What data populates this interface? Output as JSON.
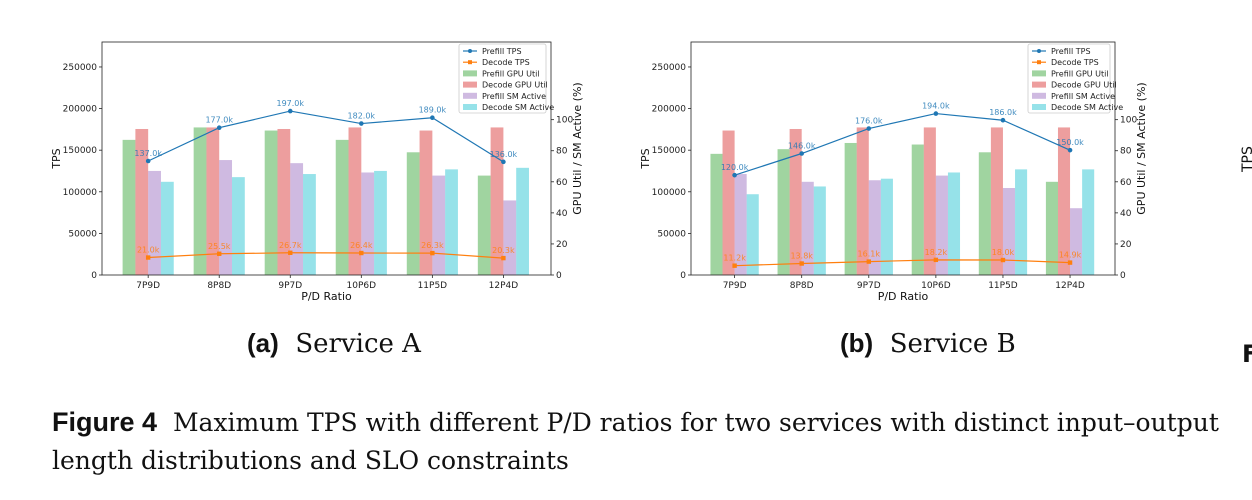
{
  "chart_data": [
    {
      "type": "bar+line",
      "subcaption_label": "(a)",
      "subcaption_text": "Service A",
      "xlabel": "P/D Ratio",
      "ylabel": "TPS",
      "ylabel_right": "GPU Util / SM Active (%)",
      "categories": [
        "7P9D",
        "8P8D",
        "9P7D",
        "10P6D",
        "11P5D",
        "12P4D"
      ],
      "ylim": [
        0,
        280000
      ],
      "yticks": [
        0,
        50000,
        100000,
        150000,
        200000,
        250000
      ],
      "ylim_right": [
        0,
        150
      ],
      "yticks_right": [
        0,
        20,
        40,
        60,
        80,
        100
      ],
      "grid": false,
      "legend_placement": "top-right",
      "lines": [
        {
          "name": "Prefill TPS",
          "color": "#1f77b4",
          "marker": "circle",
          "values": [
            137000,
            177000,
            197000,
            182000,
            189000,
            136000
          ],
          "labels": [
            "137.0k",
            "177.0k",
            "197.0k",
            "182.0k",
            "189.0k",
            "136.0k"
          ]
        },
        {
          "name": "Decode TPS",
          "color": "#ff7f0e",
          "marker": "square",
          "values": [
            21000,
            25500,
            26700,
            26400,
            26300,
            20300
          ],
          "labels": [
            "21.0k",
            "25.5k",
            "26.7k",
            "26.4k",
            "26.3k",
            "20.3k"
          ]
        }
      ],
      "bars": [
        {
          "name": "Prefill GPU Util",
          "color": "#2ca02c",
          "values": [
            87,
            95,
            93,
            87,
            79,
            64
          ]
        },
        {
          "name": "Decode GPU Util",
          "color": "#d62728",
          "values": [
            94,
            95,
            94,
            95,
            93,
            95
          ]
        },
        {
          "name": "Prefill SM Active",
          "color": "#9467bd",
          "values": [
            67,
            74,
            72,
            66,
            64,
            48
          ]
        },
        {
          "name": "Decode SM Active",
          "color": "#17becf",
          "values": [
            60,
            63,
            65,
            67,
            68,
            69
          ]
        }
      ]
    },
    {
      "type": "bar+line",
      "subcaption_label": "(b)",
      "subcaption_text": "Service B",
      "xlabel": "P/D Ratio",
      "ylabel": "TPS",
      "ylabel_right": "GPU Util / SM Active (%)",
      "categories": [
        "7P9D",
        "8P8D",
        "9P7D",
        "10P6D",
        "11P5D",
        "12P4D"
      ],
      "ylim": [
        0,
        280000
      ],
      "yticks": [
        0,
        50000,
        100000,
        150000,
        200000,
        250000
      ],
      "ylim_right": [
        0,
        150
      ],
      "yticks_right": [
        0,
        20,
        40,
        60,
        80,
        100
      ],
      "grid": false,
      "legend_placement": "top-right",
      "lines": [
        {
          "name": "Prefill TPS",
          "color": "#1f77b4",
          "marker": "circle",
          "values": [
            120000,
            146000,
            176000,
            194000,
            186000,
            150000
          ],
          "labels": [
            "120.0k",
            "146.0k",
            "176.0k",
            "194.0k",
            "186.0k",
            "150.0k"
          ]
        },
        {
          "name": "Decode TPS",
          "color": "#ff7f0e",
          "marker": "square",
          "values": [
            11200,
            13800,
            16100,
            18200,
            18000,
            14900
          ],
          "labels": [
            "11.2k",
            "13.8k",
            "16.1k",
            "18.2k",
            "18.0k",
            "14.9k"
          ]
        }
      ],
      "bars": [
        {
          "name": "Prefill GPU Util",
          "color": "#2ca02c",
          "values": [
            78,
            81,
            85,
            84,
            79,
            60
          ]
        },
        {
          "name": "Decode GPU Util",
          "color": "#d62728",
          "values": [
            93,
            94,
            95,
            95,
            95,
            95
          ]
        },
        {
          "name": "Prefill SM Active",
          "color": "#9467bd",
          "values": [
            65,
            60,
            61,
            64,
            56,
            43
          ]
        },
        {
          "name": "Decode SM Active",
          "color": "#17becf",
          "values": [
            52,
            57,
            62,
            66,
            68,
            68
          ]
        }
      ]
    }
  ],
  "caption": {
    "label": "Figure 4",
    "text": "Maximum TPS with different P/D ratios for two services with distinct input–output length distributions and SLO constraints"
  },
  "cropped_panel": {
    "ylabel": "TPS",
    "subcaption_fragment": "F"
  }
}
